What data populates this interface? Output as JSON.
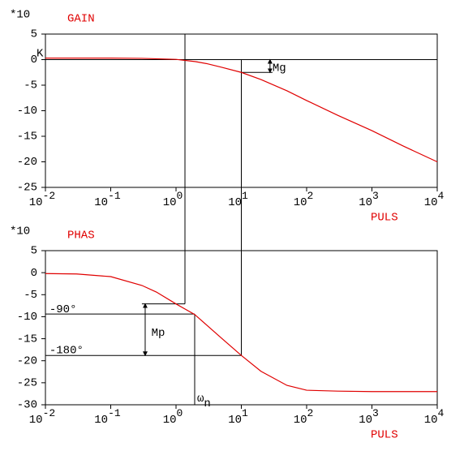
{
  "chart_data": [
    {
      "type": "line",
      "title": "GAIN",
      "y_multiplier": "*10",
      "x_label": "PULS",
      "log_x": true,
      "xlim": [
        0.01,
        10000
      ],
      "ylim": [
        -25,
        5
      ],
      "xticks": [
        {
          "value": 0.01,
          "label": "10",
          "exponent": "-2"
        },
        {
          "value": 0.1,
          "label": "10",
          "exponent": "-1"
        },
        {
          "value": 1,
          "label": "10",
          "exponent": "0"
        },
        {
          "value": 10,
          "label": "10",
          "exponent": "1"
        },
        {
          "value": 100,
          "label": "10",
          "exponent": "2"
        },
        {
          "value": 1000,
          "label": "10",
          "exponent": "3"
        },
        {
          "value": 10000,
          "label": "10",
          "exponent": "4"
        }
      ],
      "yticks": [
        5,
        0,
        -5,
        -10,
        -15,
        -20,
        -25
      ],
      "x": [
        0.01,
        0.03,
        0.1,
        0.3,
        1,
        2,
        3,
        5,
        10,
        20,
        50,
        100,
        300,
        1000,
        3000,
        10000
      ],
      "series": [
        {
          "color": "#e00000",
          "values": [
            0.3,
            0.3,
            0.3,
            0.25,
            0.05,
            -0.4,
            -0.8,
            -1.5,
            -2.5,
            -3.9,
            -6.1,
            -8.0,
            -10.9,
            -13.9,
            -16.9,
            -20
          ]
        }
      ],
      "guides": [
        {
          "x": [
            1.37,
            1.37
          ],
          "y": [
            5,
            -25
          ]
        },
        {
          "x": [
            10,
            10
          ],
          "y": [
            0,
            -25
          ]
        },
        {
          "x": [
            0.01,
            10000
          ],
          "y": [
            0,
            0
          ]
        },
        {
          "x": [
            10,
            30
          ],
          "y": [
            -2.5,
            -2.5
          ]
        }
      ],
      "arrows": [
        {
          "x": [
            27.5,
            27.5
          ],
          "y": [
            0,
            -2.5
          ]
        }
      ],
      "annotations": [
        {
          "text": "K",
          "x": 0.01,
          "y": 1.3
        },
        {
          "text": "Mg",
          "x": 30,
          "y": -1.6
        }
      ]
    },
    {
      "type": "line",
      "title": "PHAS",
      "y_multiplier": "*10",
      "x_label": "PULS",
      "log_x": true,
      "xlim": [
        0.01,
        10000
      ],
      "ylim": [
        -30,
        5
      ],
      "xticks": [
        {
          "value": 0.01,
          "label": "10",
          "exponent": "-2"
        },
        {
          "value": 0.1,
          "label": "10",
          "exponent": "-1"
        },
        {
          "value": 1,
          "label": "10",
          "exponent": "0"
        },
        {
          "value": 10,
          "label": "10",
          "exponent": "1"
        },
        {
          "value": 100,
          "label": "10",
          "exponent": "2"
        },
        {
          "value": 1000,
          "label": "10",
          "exponent": "3"
        },
        {
          "value": 10000,
          "label": "10",
          "exponent": "4"
        }
      ],
      "yticks": [
        5,
        0,
        -5,
        -10,
        -15,
        -20,
        -25,
        -30
      ],
      "x": [
        0.01,
        0.03,
        0.1,
        0.3,
        0.5,
        1,
        1.93,
        3,
        5,
        10,
        20,
        50,
        100,
        300,
        1000,
        10000
      ],
      "series": [
        {
          "color": "#e00000",
          "values": [
            -0.2,
            -0.3,
            -0.9,
            -2.9,
            -4.4,
            -7.1,
            -9.5,
            -12.0,
            -14.9,
            -18.8,
            -22.4,
            -25.6,
            -26.7,
            -26.9,
            -27,
            -27
          ]
        }
      ],
      "guides": [
        {
          "x": [
            1.37,
            1.37
          ],
          "y": [
            5,
            -7.1
          ],
          "extend_up": true
        },
        {
          "x": [
            10,
            10
          ],
          "y": [
            5,
            -18.8
          ],
          "extend_up": true
        },
        {
          "x": [
            0.01,
            1.93
          ],
          "y": [
            -9.4,
            -9.4
          ]
        },
        {
          "x": [
            0.3,
            1.37
          ],
          "y": [
            -7.1,
            -7.1
          ]
        },
        {
          "x": [
            0.01,
            10
          ],
          "y": [
            -18.8,
            -18.8
          ]
        },
        {
          "x": [
            1.93,
            1.93
          ],
          "y": [
            -9.4,
            -30
          ]
        }
      ],
      "arrows": [
        {
          "x": [
            0.337,
            0.337
          ],
          "y": [
            -7.1,
            -18.8
          ]
        }
      ],
      "annotations": [
        {
          "text": "-90°",
          "x": 0.0115,
          "y": -8.3
        },
        {
          "text": "-180°",
          "x": 0.0115,
          "y": -17.6
        },
        {
          "text": "Mp",
          "x": 0.42,
          "y": -13.6
        },
        {
          "text": "ω",
          "sub": "n",
          "x": 2.1,
          "y": -28.5
        }
      ]
    }
  ]
}
